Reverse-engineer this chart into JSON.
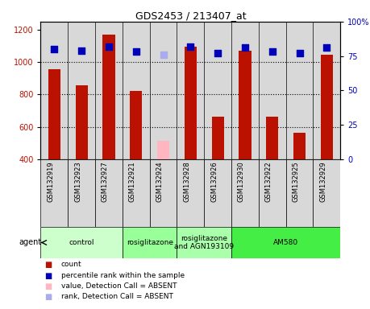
{
  "title": "GDS2453 / 213407_at",
  "samples": [
    "GSM132919",
    "GSM132923",
    "GSM132927",
    "GSM132921",
    "GSM132924",
    "GSM132928",
    "GSM132926",
    "GSM132930",
    "GSM132922",
    "GSM132925",
    "GSM132929"
  ],
  "counts": [
    955,
    855,
    1170,
    820,
    null,
    1095,
    660,
    1070,
    660,
    565,
    1045
  ],
  "counts_absent": [
    null,
    null,
    null,
    null,
    515,
    null,
    null,
    null,
    null,
    null,
    null
  ],
  "percentile_ranks": [
    80,
    79,
    82,
    78,
    null,
    82,
    77,
    81,
    78,
    77,
    81
  ],
  "percentile_ranks_absent": [
    null,
    null,
    null,
    null,
    76,
    null,
    null,
    null,
    null,
    null,
    null
  ],
  "ylim_left": [
    400,
    1250
  ],
  "ylim_right": [
    0,
    100
  ],
  "yticks_left": [
    400,
    600,
    800,
    1000,
    1200
  ],
  "yticks_right": [
    0,
    25,
    50,
    75,
    100
  ],
  "bar_color": "#BB1100",
  "bar_color_absent": "#FFB6C1",
  "dot_color": "#0000BB",
  "dot_color_absent": "#AAAAEE",
  "bg_color": "#D8D8D8",
  "agent_groups": [
    {
      "label": "control",
      "start": 0,
      "end": 3,
      "color": "#CCFFCC"
    },
    {
      "label": "rosiglitazone",
      "start": 3,
      "end": 5,
      "color": "#99FF99"
    },
    {
      "label": "rosiglitazone\nand AGN193109",
      "start": 5,
      "end": 7,
      "color": "#AAFFAA"
    },
    {
      "label": "AM580",
      "start": 7,
      "end": 11,
      "color": "#44EE44"
    }
  ],
  "dotted_lines": [
    600,
    800,
    1000
  ],
  "legend_items": [
    {
      "color": "#BB1100",
      "label": "count"
    },
    {
      "color": "#0000BB",
      "label": "percentile rank within the sample"
    },
    {
      "color": "#FFB6C1",
      "label": "value, Detection Call = ABSENT"
    },
    {
      "color": "#AAAAEE",
      "label": "rank, Detection Call = ABSENT"
    }
  ]
}
